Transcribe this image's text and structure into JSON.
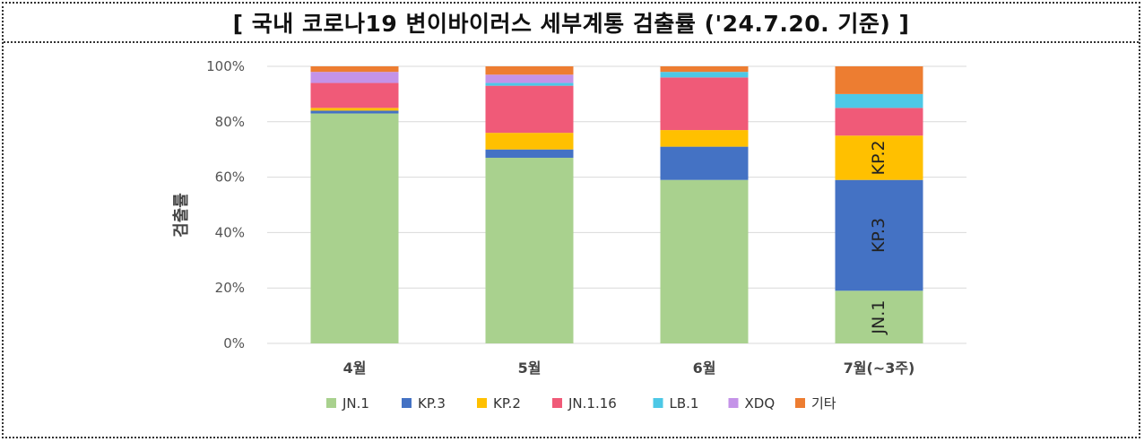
{
  "title": "[ 국내 코로나19 변이바이러스 세부계통 검출률 ('24.7.20. 기준) ]",
  "chart_data": {
    "type": "bar",
    "stacked": true,
    "ylabel": "검출률",
    "xlabel": "",
    "ylim": [
      0,
      100
    ],
    "yticks": [
      "0%",
      "20%",
      "40%",
      "60%",
      "80%",
      "100%"
    ],
    "grid": true,
    "legend_position": "bottom",
    "categories": [
      "4월",
      "5월",
      "6월",
      "7월(~3주)"
    ],
    "series": [
      {
        "name": "JN.1",
        "color": "#A9D18E",
        "values": [
          83,
          67,
          59,
          19
        ]
      },
      {
        "name": "KP.3",
        "color": "#4472C4",
        "values": [
          1,
          3,
          12,
          40
        ]
      },
      {
        "name": "KP.2",
        "color": "#FFC000",
        "values": [
          1,
          6,
          6,
          16
        ]
      },
      {
        "name": "JN.1.16",
        "color": "#F05A78",
        "values": [
          9,
          17,
          19,
          10
        ]
      },
      {
        "name": "LB.1",
        "color": "#4DC8E6",
        "values": [
          0,
          1,
          2,
          5
        ]
      },
      {
        "name": "XDQ",
        "color": "#C493E8",
        "values": [
          4,
          3,
          0,
          0
        ]
      },
      {
        "name": "기타",
        "color": "#ED7D31",
        "values": [
          2,
          3,
          2,
          10
        ]
      }
    ],
    "data_labels": [
      {
        "category": "7월(~3주)",
        "series": "JN.1",
        "text": "JN.1"
      },
      {
        "category": "7월(~3주)",
        "series": "KP.3",
        "text": "KP.3"
      },
      {
        "category": "7월(~3주)",
        "series": "KP.2",
        "text": "KP.2"
      }
    ]
  }
}
